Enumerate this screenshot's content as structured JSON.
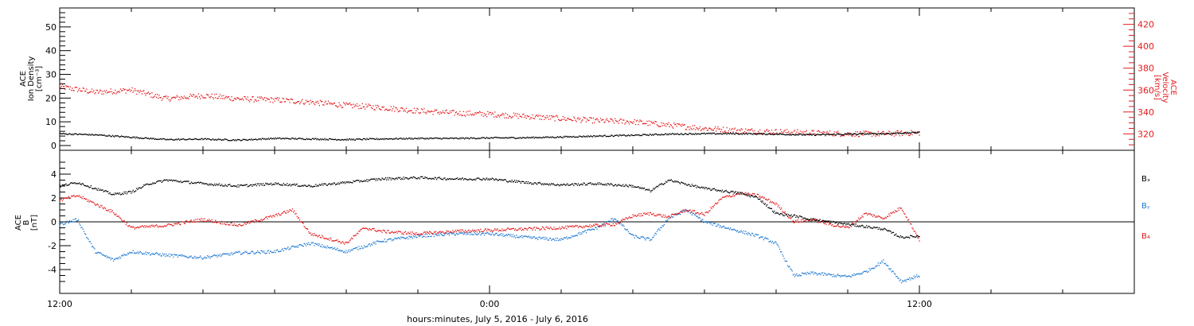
{
  "colors": {
    "black": "#000000",
    "red": "#e41a1c",
    "blue": "#1f78d1",
    "axis": "#000000"
  },
  "x_axis": {
    "label": "hours:minutes, July  5, 2016 - July  6, 2016",
    "tick_labels": [
      "12:00",
      "0:00",
      "12:00"
    ],
    "tick_hours": [
      0,
      12,
      24
    ],
    "range_hours": [
      0,
      30
    ]
  },
  "chart_data": [
    {
      "type": "scatter",
      "panel": "top",
      "ylabel_left": [
        "ACE",
        "Ion Density",
        "[cm⁻³]"
      ],
      "ylabel_right": [
        "ACE",
        "Velocity",
        "[km/s]"
      ],
      "ylim_left": [
        -2,
        58
      ],
      "yticks_left": [
        0,
        10,
        20,
        30,
        40,
        50
      ],
      "ylim_right": [
        305,
        435
      ],
      "yticks_right": [
        320,
        340,
        360,
        380,
        400,
        420
      ],
      "series": [
        {
          "axis": "left",
          "color": "black",
          "x_hours": [
            0,
            1,
            2,
            3,
            4,
            5,
            6,
            7,
            8,
            9,
            10,
            11,
            12,
            13,
            14,
            15,
            16,
            17,
            18,
            19,
            20,
            21,
            22,
            23,
            24
          ],
          "y": [
            5.0,
            4.5,
            3.5,
            2.5,
            2.7,
            2.3,
            3.0,
            2.8,
            2.5,
            2.8,
            3.0,
            3.0,
            3.2,
            3.3,
            3.6,
            4.0,
            4.3,
            4.8,
            5.0,
            5.0,
            4.8,
            4.5,
            4.8,
            5.0,
            5.5
          ]
        },
        {
          "axis": "right",
          "color": "red",
          "x_hours": [
            0,
            1,
            2,
            3,
            4,
            5,
            6,
            7,
            8,
            9,
            10,
            11,
            12,
            13,
            14,
            15,
            16,
            17,
            18,
            19,
            20,
            21,
            22,
            23,
            24
          ],
          "y": [
            363,
            358,
            360,
            352,
            355,
            352,
            351,
            349,
            346,
            344,
            341,
            339,
            338,
            336,
            334,
            332,
            331,
            328,
            325,
            323,
            322,
            321,
            320,
            320,
            321
          ]
        }
      ]
    },
    {
      "type": "scatter",
      "panel": "bottom",
      "ylabel_left": [
        "ACE",
        "B",
        "[nT]"
      ],
      "ylim": [
        -6,
        6
      ],
      "yticks": [
        -4,
        -2,
        0,
        2,
        4
      ],
      "zero_line": true,
      "legend": [
        "Bₓ",
        "Bᵧ",
        "B₄"
      ],
      "series": [
        {
          "name": "Bₓ",
          "color": "black",
          "x_hours": [
            0,
            0.5,
            1,
            1.5,
            2,
            2.5,
            3,
            4,
            5,
            6,
            7,
            8,
            9,
            10,
            11,
            12,
            13,
            14,
            15,
            16,
            16.5,
            17,
            18,
            19,
            19.5,
            20,
            20.5,
            21,
            21.5,
            22,
            23,
            23.5,
            24
          ],
          "y": [
            3.0,
            3.3,
            2.8,
            2.3,
            2.5,
            3.2,
            3.5,
            3.2,
            3.0,
            3.2,
            3.0,
            3.3,
            3.6,
            3.7,
            3.6,
            3.6,
            3.3,
            3.1,
            3.2,
            3.0,
            2.6,
            3.5,
            2.8,
            2.4,
            2.0,
            0.7,
            0.5,
            0.2,
            0.0,
            -0.2,
            -0.6,
            -1.3,
            -1.2
          ]
        },
        {
          "name": "Bᵧ",
          "color": "blue",
          "x_hours": [
            0,
            0.5,
            0.8,
            1,
            1.5,
            2,
            3,
            4,
            5,
            6,
            7,
            8,
            9,
            10,
            11,
            12,
            13,
            14,
            15,
            15.5,
            16,
            16.5,
            17,
            17.5,
            18,
            19,
            19.5,
            20,
            20.5,
            21,
            22,
            22.5,
            23,
            23.5,
            24
          ],
          "y": [
            -0.2,
            0.2,
            -1.5,
            -2.5,
            -3.2,
            -2.5,
            -2.8,
            -3.0,
            -2.6,
            -2.5,
            -1.8,
            -2.5,
            -1.6,
            -1.2,
            -1.0,
            -1.0,
            -1.3,
            -1.5,
            -0.5,
            0.3,
            -1.2,
            -1.5,
            0.3,
            1.0,
            0.0,
            -0.8,
            -1.2,
            -1.8,
            -4.5,
            -4.3,
            -4.6,
            -4.2,
            -3.3,
            -5.0,
            -4.5
          ]
        },
        {
          "name": "B₄",
          "color": "red",
          "x_hours": [
            0,
            0.5,
            1,
            1.5,
            2,
            3,
            4,
            5,
            6,
            6.5,
            7,
            8,
            8.5,
            9,
            10,
            11,
            12,
            13,
            14,
            15,
            15.5,
            16,
            16.5,
            17,
            17.5,
            18,
            18.5,
            19,
            19.5,
            20,
            20.5,
            21,
            21.5,
            22,
            22.5,
            23,
            23.5,
            24
          ],
          "y": [
            1.8,
            2.2,
            1.5,
            0.8,
            -0.5,
            -0.3,
            0.2,
            -0.3,
            0.5,
            1.0,
            -1.0,
            -1.8,
            -0.5,
            -0.8,
            -1.0,
            -0.8,
            -0.7,
            -0.6,
            -0.5,
            -0.3,
            -0.2,
            0.5,
            0.7,
            0.4,
            1.0,
            0.6,
            2.0,
            2.4,
            2.2,
            1.5,
            0.0,
            0.2,
            -0.2,
            -0.5,
            0.7,
            0.3,
            1.2,
            -1.5
          ]
        }
      ]
    }
  ]
}
